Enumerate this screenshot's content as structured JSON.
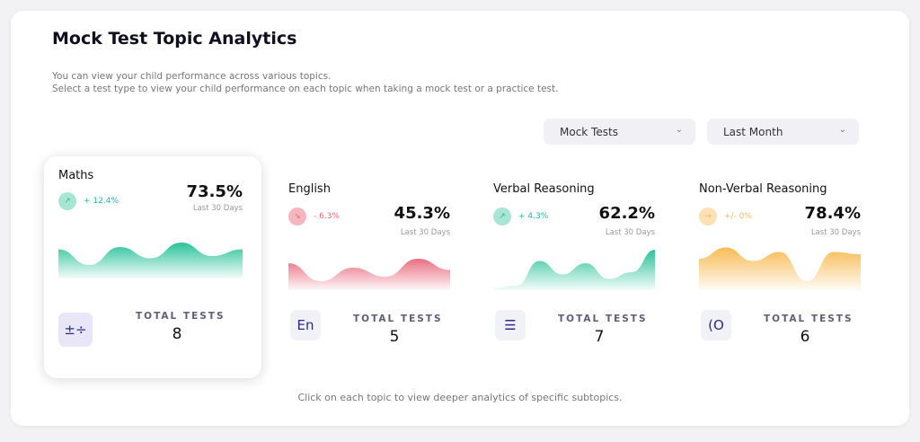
{
  "title": "Mock Test Topic Analytics",
  "description": [
    "You can view your child performance across various topics.",
    "Select a test type to view your child performance on each topic when taking a mock test or a practice test."
  ],
  "filters": {
    "test_type": "Mock Tests",
    "period": "Last Month"
  },
  "topics": [
    {
      "name": "Maths",
      "change": "+ 12.4%",
      "trend": "up",
      "score": "73.5%",
      "period": "Last 30 Days",
      "total_label": "TOTAL TESTS",
      "total": "8",
      "icon": "math-operators-icon",
      "icon_glyph": "±÷",
      "color": "#1fbf94"
    },
    {
      "name": "English",
      "change": "- 6.3%",
      "trend": "down",
      "score": "45.3%",
      "period": "Last 30 Days",
      "total_label": "TOTAL TESTS",
      "total": "5",
      "icon": "english-icon",
      "icon_glyph": "En",
      "color": "#e8677a"
    },
    {
      "name": "Verbal Reasoning",
      "change": "+ 4.3%",
      "trend": "up",
      "score": "62.2%",
      "period": "Last 30 Days",
      "total_label": "TOTAL TESTS",
      "total": "7",
      "icon": "text-list-icon",
      "icon_glyph": "☰",
      "color": "#1fbf94"
    },
    {
      "name": "Non-Verbal Reasoning",
      "change": "+/- 0%",
      "trend": "flat",
      "score": "78.4%",
      "period": "Last 30 Days",
      "total_label": "TOTAL TESTS",
      "total": "6",
      "icon": "shapes-icon",
      "icon_glyph": "(O",
      "color": "#f7b84b"
    }
  ],
  "footer": "Click on each topic to view deeper analytics of specific subtopics."
}
